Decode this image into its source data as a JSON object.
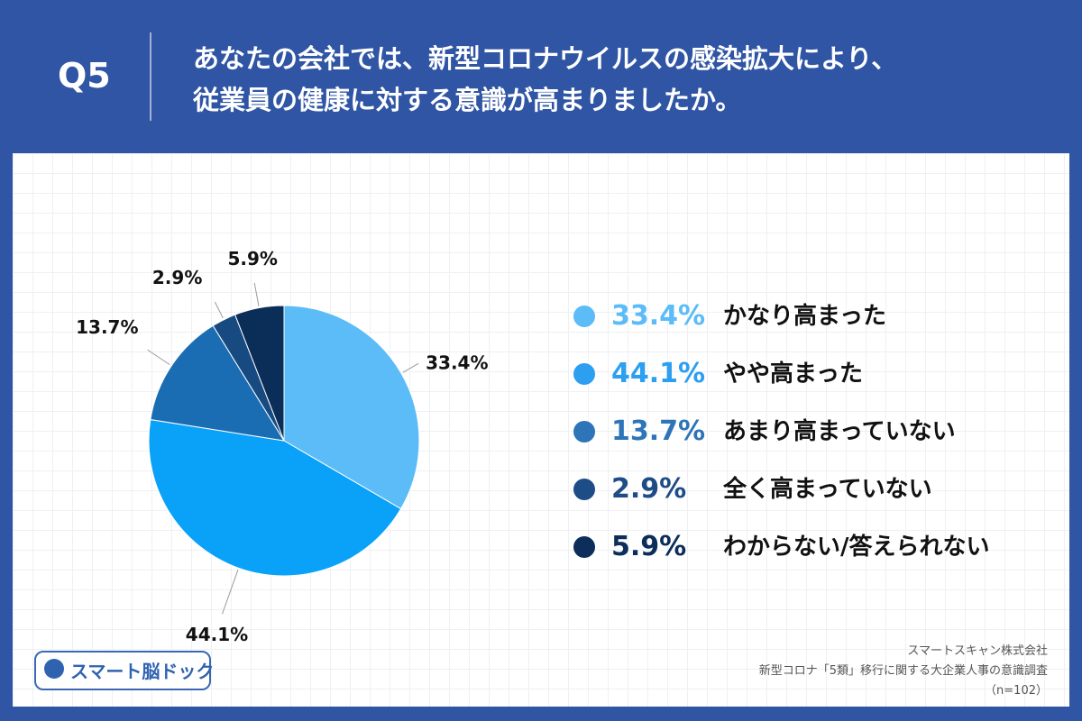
{
  "header": {
    "question_number": "Q5",
    "question_line1": "あなたの会社では、新型コロナウイルスの感染拡大により、",
    "question_line2": "従業員の健康に対する意識が高まりましたか。"
  },
  "chart_data": {
    "type": "pie",
    "start_angle_deg": 0,
    "direction": "clockwise",
    "slices": [
      {
        "label": "かなり高まった",
        "value": 33.4,
        "display": "33.4%",
        "color": "#5bbcf8"
      },
      {
        "label": "やや高まった",
        "value": 44.1,
        "display": "44.1%",
        "color": "#0aa1f8"
      },
      {
        "label": "あまり高まっていない",
        "value": 13.7,
        "display": "13.7%",
        "color": "#1a6db3"
      },
      {
        "label": "全く高まっていない",
        "value": 2.9,
        "display": "2.9%",
        "color": "#174a80"
      },
      {
        "label": "わからない/答えられない",
        "value": 5.9,
        "display": "5.9%",
        "color": "#0a2e58"
      }
    ]
  },
  "legend": {
    "items": [
      {
        "pct": "33.4%",
        "label": "かなり高まった",
        "color": "#5bbcf8"
      },
      {
        "pct": "44.1%",
        "label": "やや高まった",
        "color": "#2c9ff0"
      },
      {
        "pct": "13.7%",
        "label": "あまり高まっていない",
        "color": "#2d74b8"
      },
      {
        "pct": "2.9%",
        "label": "全く高まっていない",
        "color": "#1d4c86"
      },
      {
        "pct": "5.9%",
        "label": "わからない/答えられない",
        "color": "#0d2d5a"
      }
    ]
  },
  "logo": {
    "text": "スマート脳ドック",
    "icon": "brain-scan-icon"
  },
  "credit": {
    "company": "スマートスキャン株式会社",
    "survey": "新型コロナ「5類」移行に関する大企業人事の意識調査",
    "sample": "（n=102）"
  }
}
